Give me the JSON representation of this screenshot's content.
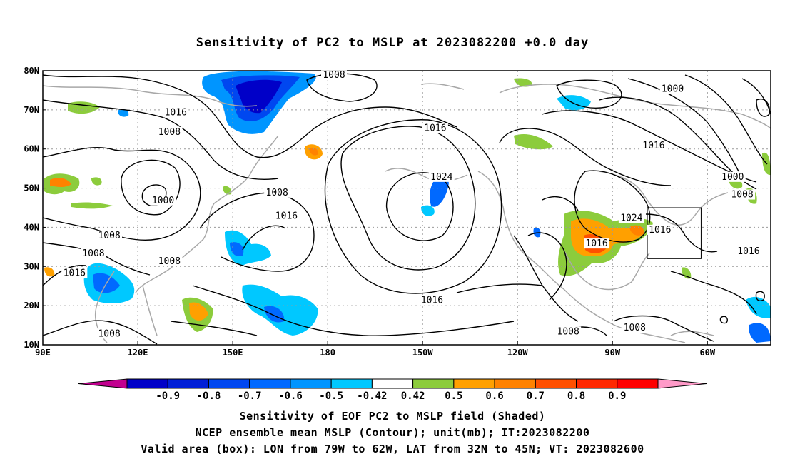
{
  "title": "Sensitivity of PC2 to MSLP at 2023082200 +0.0 day",
  "lat_ticks": [
    "10N",
    "20N",
    "30N",
    "40N",
    "50N",
    "60N",
    "70N",
    "80N"
  ],
  "lon_ticks": [
    {
      "label": "90E",
      "lon": 90
    },
    {
      "label": "120E",
      "lon": 120
    },
    {
      "label": "150E",
      "lon": 150
    },
    {
      "label": "180",
      "lon": 180
    },
    {
      "label": "150W",
      "lon": 210
    },
    {
      "label": "120W",
      "lon": 240
    },
    {
      "label": "90W",
      "lon": 270
    },
    {
      "label": "60W",
      "lon": 300
    }
  ],
  "map_extent": {
    "lon_min": 90,
    "lon_max": 320,
    "lat_min": 10,
    "lat_max": 80
  },
  "valid_box": {
    "lon_min": 281,
    "lon_max": 298,
    "lat_min": 32,
    "lat_max": 45
  },
  "contour_labels": [
    {
      "text": "1008",
      "lon": 182,
      "lat": 78.5
    },
    {
      "text": "1016",
      "lon": 132,
      "lat": 69
    },
    {
      "text": "1008",
      "lon": 130,
      "lat": 64
    },
    {
      "text": "1016",
      "lon": 214,
      "lat": 65
    },
    {
      "text": "1000",
      "lon": 289,
      "lat": 75
    },
    {
      "text": "1016",
      "lon": 283,
      "lat": 60.5
    },
    {
      "text": "1024",
      "lon": 216,
      "lat": 52.5
    },
    {
      "text": "1008",
      "lon": 164,
      "lat": 48.5
    },
    {
      "text": "1000",
      "lon": 308,
      "lat": 52.5
    },
    {
      "text": "1008",
      "lon": 311,
      "lat": 48
    },
    {
      "text": "1000",
      "lon": 128,
      "lat": 46.5
    },
    {
      "text": "1016",
      "lon": 167,
      "lat": 42.5
    },
    {
      "text": "1024",
      "lon": 276,
      "lat": 42
    },
    {
      "text": "1016",
      "lon": 285,
      "lat": 39
    },
    {
      "text": "1016",
      "lon": 265,
      "lat": 35.5
    },
    {
      "text": "1016",
      "lon": 313,
      "lat": 33.5
    },
    {
      "text": "1008",
      "lon": 111,
      "lat": 37.5
    },
    {
      "text": "1008",
      "lon": 106,
      "lat": 33
    },
    {
      "text": "1008",
      "lon": 130,
      "lat": 31
    },
    {
      "text": "1016",
      "lon": 100,
      "lat": 28
    },
    {
      "text": "1016",
      "lon": 213,
      "lat": 21
    },
    {
      "text": "1008",
      "lon": 111,
      "lat": 12.5
    },
    {
      "text": "1008",
      "lon": 256,
      "lat": 13
    },
    {
      "text": "1008",
      "lon": 277,
      "lat": 14
    }
  ],
  "colorbar": {
    "colors": [
      "#c2008f",
      "#0000c8",
      "#001ed7",
      "#0047f0",
      "#0069ff",
      "#0095ff",
      "#00c8ff",
      "#ffffff",
      "#8ccc3c",
      "#ffa000",
      "#ff8200",
      "#ff5000",
      "#ff2800",
      "#ff0000",
      "#ff9ac8"
    ],
    "labels": [
      "-0.9",
      "-0.8",
      "-0.7",
      "-0.6",
      "-0.5",
      "-0.42",
      "0.42",
      "0.5",
      "0.6",
      "0.7",
      "0.8",
      "0.9"
    ]
  },
  "captions": [
    "Sensitivity of EOF PC2 to MSLP field (Shaded)",
    "NCEP ensemble mean MSLP (Contour); unit(mb); IT:2023082200",
    "Valid area (box): LON from 79W to 62W, LAT from 32N to 45N; VT: 2023082600"
  ]
}
